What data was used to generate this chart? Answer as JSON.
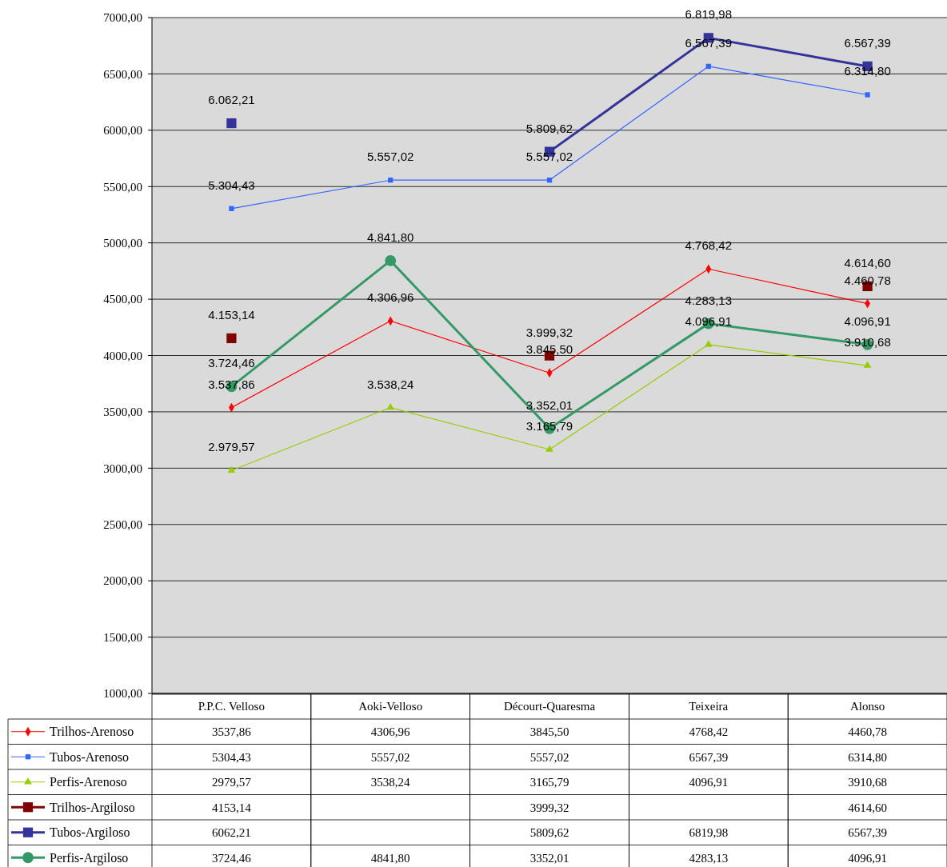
{
  "chart_data": {
    "type": "line",
    "categories": [
      "P.P.C. Velloso",
      "Aoki-Velloso",
      "Décourt-Quaresma",
      "Teixeira",
      "Alonso"
    ],
    "series": [
      {
        "name": "Trilhos-Arenoso",
        "color": "#ff0000",
        "marker": "diamond",
        "values": [
          3537.86,
          4306.96,
          3845.5,
          4768.42,
          4460.78
        ],
        "value_labels": [
          "3537,86",
          "4306,96",
          "3845,50",
          "4768,42",
          "4460,78"
        ]
      },
      {
        "name": "Tubos-Arenoso",
        "color": "#3366ff",
        "marker": "square",
        "values": [
          5304.43,
          5557.02,
          5557.02,
          6567.39,
          6314.8
        ],
        "value_labels": [
          "5304,43",
          "5557,02",
          "5557,02",
          "6567,39",
          "6314,80"
        ]
      },
      {
        "name": "Perfis-Arenoso",
        "color": "#99cc00",
        "marker": "triangle",
        "values": [
          2979.57,
          3538.24,
          3165.79,
          4096.91,
          3910.68
        ],
        "value_labels": [
          "2979,57",
          "3538,24",
          "3165,79",
          "4096,91",
          "3910,68"
        ]
      },
      {
        "name": "Trilhos-Argiloso",
        "type": "scatter",
        "color": "#800000",
        "marker": "square",
        "values": [
          4153.14,
          null,
          3999.32,
          null,
          4614.6
        ],
        "value_labels": [
          "4153,14",
          null,
          "3999,32",
          null,
          "4614,60"
        ]
      },
      {
        "name": "Tubos-Argiloso",
        "color": "#333399",
        "marker": "square",
        "values": [
          6062.21,
          null,
          5809.62,
          6819.98,
          6567.39
        ],
        "value_labels": [
          "6062,21",
          null,
          "5809,62",
          "6819,98",
          "6567,39"
        ]
      },
      {
        "name": "Perfis-Argiloso",
        "color": "#339966",
        "marker": "circle",
        "values": [
          3724.46,
          4841.8,
          3352.01,
          4283.13,
          4096.91
        ],
        "value_labels": [
          "3724,46",
          "4841,80",
          "3352,01",
          "4283,13",
          "4096,91"
        ]
      }
    ],
    "annotations": [
      {
        "text": "3.537,86",
        "x": "P.P.C. Velloso",
        "y": 3537.86
      },
      {
        "text": "4.306,96",
        "x": "Aoki-Velloso",
        "y": 4306.96
      },
      {
        "text": "3.845,50",
        "x": "Décourt-Quaresma",
        "y": 3845.5
      },
      {
        "text": "4.768,42",
        "x": "Teixeira",
        "y": 4768.42
      },
      {
        "text": "4.460,78",
        "x": "Alonso",
        "y": 4460.78
      },
      {
        "text": "5.304,43",
        "x": "P.P.C. Velloso",
        "y": 5304.43
      },
      {
        "text": "5.557,02",
        "x": "Aoki-Velloso",
        "y": 5557.02
      },
      {
        "text": "5.557,02",
        "x": "Décourt-Quaresma",
        "y": 5557.02
      },
      {
        "text": "6.567,39",
        "x": "Teixeira",
        "y": 6567.39
      },
      {
        "text": "6.314,80",
        "x": "Alonso",
        "y": 6314.8
      },
      {
        "text": "2.979,57",
        "x": "P.P.C. Velloso",
        "y": 2979.57
      },
      {
        "text": "3.538,24",
        "x": "Aoki-Velloso",
        "y": 3538.24
      },
      {
        "text": "3.165,79",
        "x": "Décourt-Quaresma",
        "y": 3165.79
      },
      {
        "text": "4.096,91",
        "x": "Teixeira",
        "y": 4096.91
      },
      {
        "text": "3.910,68",
        "x": "Alonso",
        "y": 3910.68
      },
      {
        "text": "4.153,14",
        "x": "P.P.C. Velloso",
        "y": 4153.14
      },
      {
        "text": "3.999,32",
        "x": "Décourt-Quaresma",
        "y": 3999.32
      },
      {
        "text": "4.614,60",
        "x": "Alonso",
        "y": 4614.6
      },
      {
        "text": "6.062,21",
        "x": "P.P.C. Velloso",
        "y": 6062.21
      },
      {
        "text": "5.809,62",
        "x": "Décourt-Quaresma",
        "y": 5809.62
      },
      {
        "text": "6.819,98",
        "x": "Teixeira",
        "y": 6819.98
      },
      {
        "text": "6.567,39",
        "x": "Alonso",
        "y": 6567.39
      },
      {
        "text": "3.724,46",
        "x": "P.P.C. Velloso",
        "y": 3724.46
      },
      {
        "text": "4.841,80",
        "x": "Aoki-Velloso",
        "y": 4841.8
      },
      {
        "text": "3.352,01",
        "x": "Décourt-Quaresma",
        "y": 3352.01
      },
      {
        "text": "4.283,13",
        "x": "Teixeira",
        "y": 4283.13
      },
      {
        "text": "4.096,91",
        "x": "Alonso",
        "y": 4096.91
      }
    ],
    "ylim": [
      1000,
      7000
    ],
    "yticks": [
      {
        "value": 1000,
        "label": "1000,00"
      },
      {
        "value": 1500,
        "label": "1500,00"
      },
      {
        "value": 2000,
        "label": "2000,00"
      },
      {
        "value": 2500,
        "label": "2500,00"
      },
      {
        "value": 3000,
        "label": "3000,00"
      },
      {
        "value": 3500,
        "label": "3500,00"
      },
      {
        "value": 4000,
        "label": "4000,00"
      },
      {
        "value": 4500,
        "label": "4500,00"
      },
      {
        "value": 5000,
        "label": "5000,00"
      },
      {
        "value": 5500,
        "label": "5500,00"
      },
      {
        "value": 6000,
        "label": "6000,00"
      },
      {
        "value": 6500,
        "label": "6500,00"
      },
      {
        "value": 7000,
        "label": "7000,00"
      }
    ],
    "grid": "y",
    "legend": "bottom",
    "data_labels": true
  }
}
